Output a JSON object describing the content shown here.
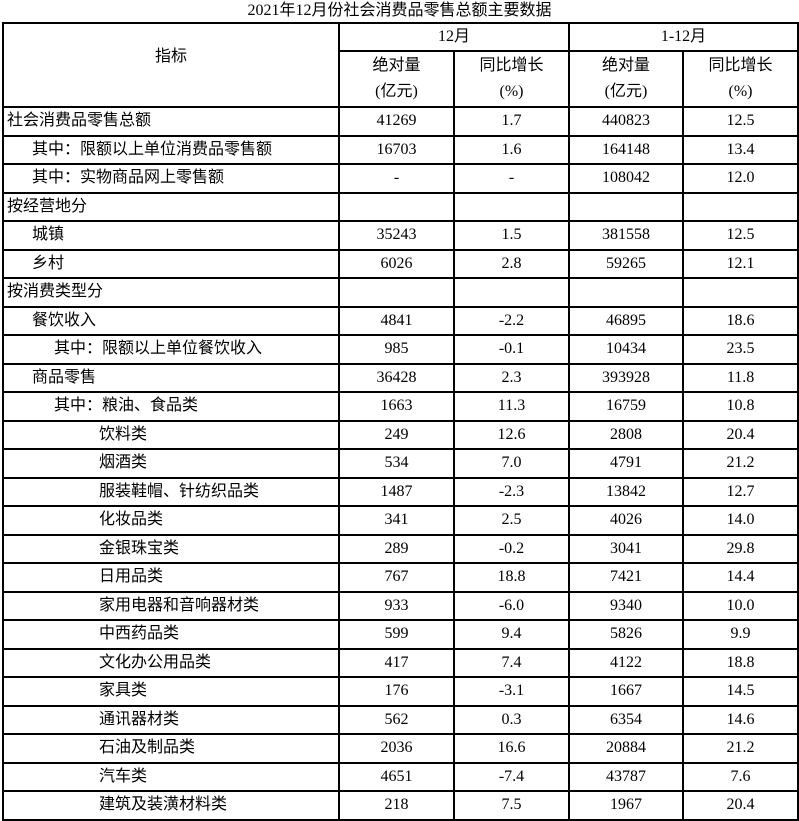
{
  "title": "2021年12月份社会消费品零售总额主要数据",
  "header": {
    "indicator": "指标",
    "group_month": "12月",
    "group_ytd": "1-12月",
    "abs_line1": "绝对量",
    "abs_line2": "(亿元)",
    "yoy_line1": "同比增长",
    "yoy_line2": "(%)"
  },
  "rows": [
    {
      "label": "社会消费品零售总额",
      "level": 0,
      "m_abs": "41269",
      "m_yoy": "1.7",
      "y_abs": "440823",
      "y_yoy": "12.5"
    },
    {
      "label": "其中：限额以上单位消费品零售额",
      "level": 1,
      "m_abs": "16703",
      "m_yoy": "1.6",
      "y_abs": "164148",
      "y_yoy": "13.4"
    },
    {
      "label": "其中：实物商品网上零售额",
      "level": 1,
      "m_abs": "-",
      "m_yoy": "-",
      "y_abs": "108042",
      "y_yoy": "12.0"
    },
    {
      "label": "按经营地分",
      "level": 0,
      "m_abs": "",
      "m_yoy": "",
      "y_abs": "",
      "y_yoy": ""
    },
    {
      "label": "城镇",
      "level": 1,
      "m_abs": "35243",
      "m_yoy": "1.5",
      "y_abs": "381558",
      "y_yoy": "12.5"
    },
    {
      "label": "乡村",
      "level": 1,
      "m_abs": "6026",
      "m_yoy": "2.8",
      "y_abs": "59265",
      "y_yoy": "12.1"
    },
    {
      "label": "按消费类型分",
      "level": 0,
      "m_abs": "",
      "m_yoy": "",
      "y_abs": "",
      "y_yoy": ""
    },
    {
      "label": "餐饮收入",
      "level": 1,
      "m_abs": "4841",
      "m_yoy": "-2.2",
      "y_abs": "46895",
      "y_yoy": "18.6"
    },
    {
      "label": "其中：限额以上单位餐饮收入",
      "level": 2,
      "m_abs": "985",
      "m_yoy": "-0.1",
      "y_abs": "10434",
      "y_yoy": "23.5"
    },
    {
      "label": "商品零售",
      "level": 1,
      "m_abs": "36428",
      "m_yoy": "2.3",
      "y_abs": "393928",
      "y_yoy": "11.8"
    },
    {
      "label": "其中：粮油、食品类",
      "level": 2,
      "m_abs": "1663",
      "m_yoy": "11.3",
      "y_abs": "16759",
      "y_yoy": "10.8"
    },
    {
      "label": "饮料类",
      "level": 3,
      "m_abs": "249",
      "m_yoy": "12.6",
      "y_abs": "2808",
      "y_yoy": "20.4"
    },
    {
      "label": "烟酒类",
      "level": 3,
      "m_abs": "534",
      "m_yoy": "7.0",
      "y_abs": "4791",
      "y_yoy": "21.2"
    },
    {
      "label": "服装鞋帽、针纺织品类",
      "level": 3,
      "m_abs": "1487",
      "m_yoy": "-2.3",
      "y_abs": "13842",
      "y_yoy": "12.7"
    },
    {
      "label": "化妆品类",
      "level": 3,
      "m_abs": "341",
      "m_yoy": "2.5",
      "y_abs": "4026",
      "y_yoy": "14.0"
    },
    {
      "label": "金银珠宝类",
      "level": 3,
      "m_abs": "289",
      "m_yoy": "-0.2",
      "y_abs": "3041",
      "y_yoy": "29.8"
    },
    {
      "label": "日用品类",
      "level": 3,
      "m_abs": "767",
      "m_yoy": "18.8",
      "y_abs": "7421",
      "y_yoy": "14.4"
    },
    {
      "label": "家用电器和音响器材类",
      "level": 3,
      "m_abs": "933",
      "m_yoy": "-6.0",
      "y_abs": "9340",
      "y_yoy": "10.0"
    },
    {
      "label": "中西药品类",
      "level": 3,
      "m_abs": "599",
      "m_yoy": "9.4",
      "y_abs": "5826",
      "y_yoy": "9.9"
    },
    {
      "label": "文化办公用品类",
      "level": 3,
      "m_abs": "417",
      "m_yoy": "7.4",
      "y_abs": "4122",
      "y_yoy": "18.8"
    },
    {
      "label": "家具类",
      "level": 3,
      "m_abs": "176",
      "m_yoy": "-3.1",
      "y_abs": "1667",
      "y_yoy": "14.5"
    },
    {
      "label": "通讯器材类",
      "level": 3,
      "m_abs": "562",
      "m_yoy": "0.3",
      "y_abs": "6354",
      "y_yoy": "14.6"
    },
    {
      "label": "石油及制品类",
      "level": 3,
      "m_abs": "2036",
      "m_yoy": "16.6",
      "y_abs": "20884",
      "y_yoy": "21.2"
    },
    {
      "label": "汽车类",
      "level": 3,
      "m_abs": "4651",
      "m_yoy": "-7.4",
      "y_abs": "43787",
      "y_yoy": "7.6"
    },
    {
      "label": "建筑及装潢材料类",
      "level": 3,
      "m_abs": "218",
      "m_yoy": "7.5",
      "y_abs": "1967",
      "y_yoy": "20.4"
    }
  ]
}
